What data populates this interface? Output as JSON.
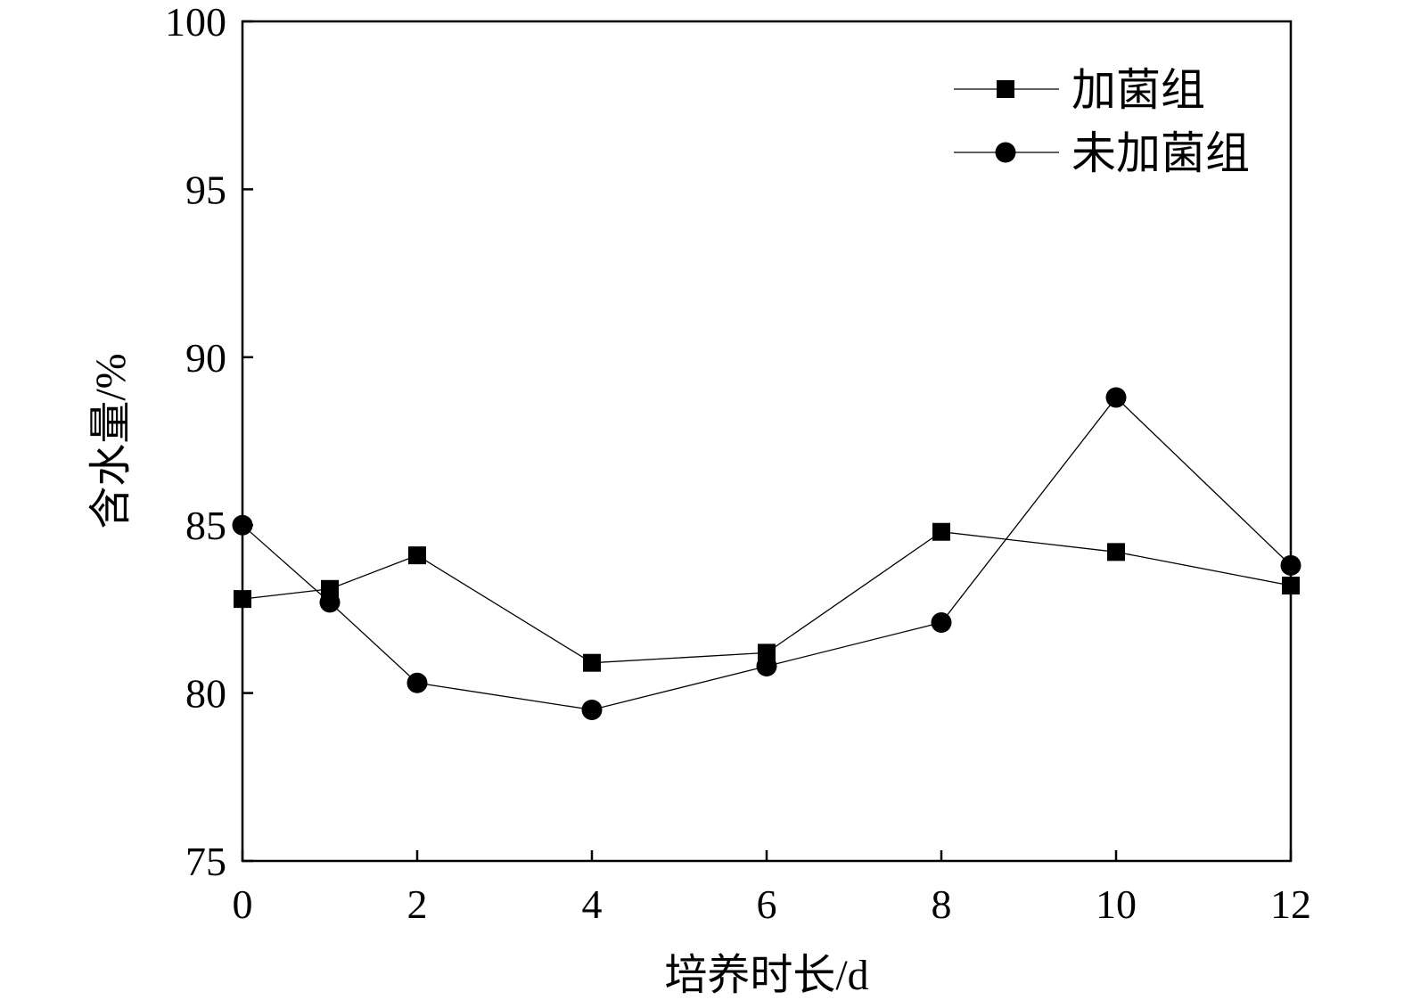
{
  "chart_data": {
    "type": "line",
    "title": "",
    "xlabel": "培养时长/d",
    "ylabel": "含水量/%",
    "xlim": [
      0,
      12
    ],
    "ylim": [
      75,
      100
    ],
    "xticks": [
      0,
      2,
      4,
      6,
      8,
      10,
      12
    ],
    "yticks": [
      75,
      80,
      85,
      90,
      95,
      100
    ],
    "grid": false,
    "legend_position": "top-right",
    "series": [
      {
        "name": "加菌组",
        "marker": "square",
        "color": "#000000",
        "x": [
          0,
          1,
          2,
          4,
          6,
          8,
          10,
          12
        ],
        "y": [
          82.8,
          83.1,
          84.1,
          80.9,
          81.2,
          84.8,
          84.2,
          83.2
        ]
      },
      {
        "name": "未加菌组",
        "marker": "circle",
        "color": "#000000",
        "x": [
          0,
          1,
          2,
          4,
          6,
          8,
          10,
          12
        ],
        "y": [
          85.0,
          82.7,
          80.3,
          79.5,
          80.8,
          82.1,
          88.8,
          83.8
        ]
      }
    ]
  }
}
